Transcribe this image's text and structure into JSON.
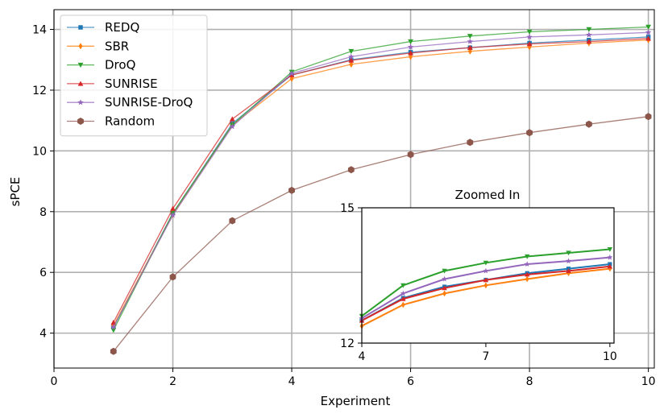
{
  "chart_data": [
    {
      "type": "line",
      "title": "",
      "xlabel": "Experiment",
      "ylabel": "sPCE",
      "xlim": [
        0,
        10.1
      ],
      "ylim": [
        2.85,
        14.65
      ],
      "xticks": [
        0,
        2,
        4,
        6,
        8,
        10
      ],
      "xtick_labels": [
        "0",
        "2",
        "4",
        "6",
        "8",
        "10"
      ],
      "yticks": [
        4,
        6,
        8,
        10,
        12,
        14
      ],
      "ytick_labels": [
        "4",
        "6",
        "8",
        "10",
        "12",
        "14"
      ],
      "grid": true,
      "legend_position": "top-left",
      "x": [
        1,
        2,
        3,
        4,
        5,
        6,
        7,
        8,
        9,
        10
      ],
      "series": [
        {
          "name": "REDQ",
          "color": "#1f77b4",
          "marker": "square",
          "values": [
            4.2,
            7.95,
            10.9,
            12.5,
            13.0,
            13.25,
            13.4,
            13.55,
            13.65,
            13.75
          ]
        },
        {
          "name": "SBR",
          "color": "#ff7f0e",
          "marker": "diamond",
          "values": [
            4.25,
            7.9,
            10.85,
            12.38,
            12.85,
            13.1,
            13.28,
            13.42,
            13.55,
            13.65
          ]
        },
        {
          "name": "DroQ",
          "color": "#2ca02c",
          "marker": "triangle-down",
          "values": [
            4.1,
            7.95,
            10.85,
            12.6,
            13.28,
            13.6,
            13.78,
            13.92,
            14.0,
            14.08
          ]
        },
        {
          "name": "SUNRISE",
          "color": "#d62728",
          "marker": "triangle-up",
          "values": [
            4.35,
            8.1,
            11.05,
            12.5,
            12.98,
            13.22,
            13.4,
            13.52,
            13.6,
            13.7
          ]
        },
        {
          "name": "SUNRISE-DroQ",
          "color": "#9467bd",
          "marker": "star",
          "values": [
            4.2,
            7.88,
            10.8,
            12.55,
            13.1,
            13.42,
            13.6,
            13.75,
            13.82,
            13.9
          ]
        },
        {
          "name": "Random",
          "color": "#8c564b",
          "marker": "hexagon",
          "values": [
            3.4,
            5.85,
            7.7,
            8.7,
            9.38,
            9.88,
            10.28,
            10.6,
            10.88,
            11.13
          ]
        }
      ]
    },
    {
      "type": "line",
      "title": "Zoomed In",
      "xlim": [
        4,
        10.1
      ],
      "ylim": [
        12,
        15
      ],
      "xticks": [
        4,
        7,
        10
      ],
      "xtick_labels": [
        "4",
        "7",
        "10"
      ],
      "yticks": [
        12,
        15
      ],
      "ytick_labels": [
        "12",
        "15"
      ],
      "grid": false,
      "x": [
        4,
        5,
        6,
        7,
        8,
        9,
        10
      ],
      "series": [
        {
          "name": "REDQ",
          "color": "#1f77b4",
          "marker": "square",
          "values": [
            12.5,
            13.0,
            13.25,
            13.4,
            13.55,
            13.65,
            13.75
          ]
        },
        {
          "name": "SBR",
          "color": "#ff7f0e",
          "marker": "diamond",
          "values": [
            12.38,
            12.85,
            13.1,
            13.28,
            13.42,
            13.55,
            13.65
          ]
        },
        {
          "name": "DroQ",
          "color": "#2ca02c",
          "marker": "triangle-down",
          "values": [
            12.6,
            13.28,
            13.6,
            13.78,
            13.92,
            14.0,
            14.08
          ]
        },
        {
          "name": "SUNRISE",
          "color": "#d62728",
          "marker": "triangle-up",
          "values": [
            12.5,
            12.98,
            13.22,
            13.4,
            13.52,
            13.6,
            13.7
          ]
        },
        {
          "name": "SUNRISE-DroQ",
          "color": "#9467bd",
          "marker": "star",
          "values": [
            12.55,
            13.1,
            13.42,
            13.6,
            13.75,
            13.82,
            13.9
          ]
        }
      ]
    }
  ]
}
